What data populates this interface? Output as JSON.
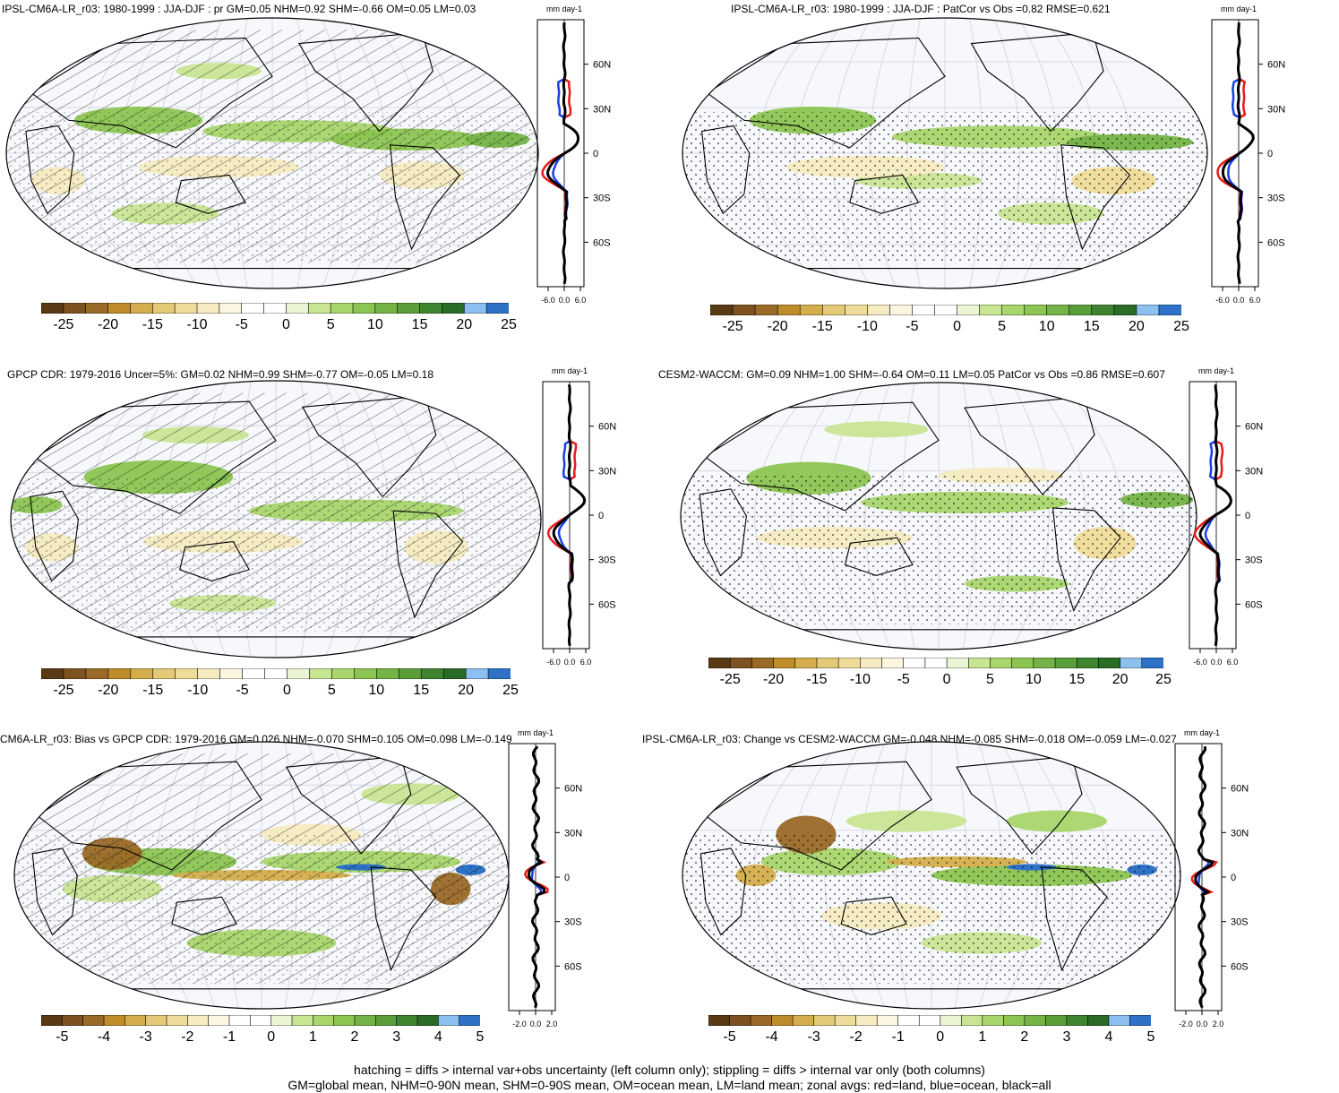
{
  "panels": [
    {
      "title": "IPSL-CM6A-LR_r03: 1980-1999 : JJA-DJF : pr GM=0.05 NHM=0.92 SHM=-0.66 OM=0.05 LM=0.03",
      "overlay": "hatch"
    },
    {
      "title": "IPSL-CM6A-LR_r03: 1980-1999 : JJA-DJF : PatCor vs Obs =0.82 RMSE=0.621",
      "overlay": "stipple"
    },
    {
      "title": "GPCP CDR: 1979-2016 Uncer=5%: GM=0.02 NHM=0.99 SHM=-0.77 OM=-0.05 LM=0.18",
      "overlay": "hatch"
    },
    {
      "title": "CESM2-WACCM: GM=0.09 NHM=1.00 SHM=-0.64 OM=0.11 LM=0.05 PatCor vs Obs =0.86 RMSE=0.607",
      "overlay": "stipple"
    },
    {
      "title": "CM6A-LR_r03: Bias vs GPCP CDR: 1979-2016 GM=0.026 NHM=-0.070 SHM=0.105 OM=0.098 LM=-0.149",
      "overlay": "hatch"
    },
    {
      "title": "IPSL-CM6A-LR_r03: Change vs CESM2-WACCM GM=-0.048 NHM=-0.085 SHM=-0.018 OM=-0.059 LM=-0.027",
      "overlay": "stipple"
    }
  ],
  "zonal_units": "mm day-1",
  "lat_labels": [
    "60N",
    "30N",
    "0",
    "30S",
    "60S"
  ],
  "x_ticks_main": [
    "-6.0",
    "0.0",
    "6.0"
  ],
  "x_ticks_diff": [
    "-2.0",
    "0.0",
    "2.0"
  ],
  "colorbar_labels_main": [
    "-25",
    "-20",
    "-15",
    "-10",
    "-5",
    "0",
    "5",
    "10",
    "15",
    "20",
    "25"
  ],
  "colorbar_labels_diff": [
    "-5",
    "-4",
    "-3",
    "-2",
    "-1",
    "0",
    "1",
    "2",
    "3",
    "4",
    "5"
  ],
  "colorbar_colors": [
    "#5a3a14",
    "#7d5220",
    "#9a6a28",
    "#bf8c2a",
    "#d4ae4c",
    "#e3c978",
    "#efdc9a",
    "#f6ebc1",
    "#fbf5e2",
    "#ffffff",
    "#ffffff",
    "#eaf5d6",
    "#c8e594",
    "#a8d56c",
    "#8cc552",
    "#74b346",
    "#5a9e3a",
    "#3f8530",
    "#2a6b26",
    "#8cc0f0",
    "#2e72c8"
  ],
  "zonal_colors": {
    "land": "#e81a1a",
    "ocean": "#1a3ee8",
    "all": "#000000"
  },
  "footnote": [
    "hatching = diffs > internal var+obs uncertainty (left column only); stippling = diffs > internal var only (both columns)",
    "GM=global mean, NHM=0-90N mean, SHM=0-90S mean, OM=ocean mean, LM=land mean; zonal avgs: red=land, blue=ocean, black=all"
  ]
}
